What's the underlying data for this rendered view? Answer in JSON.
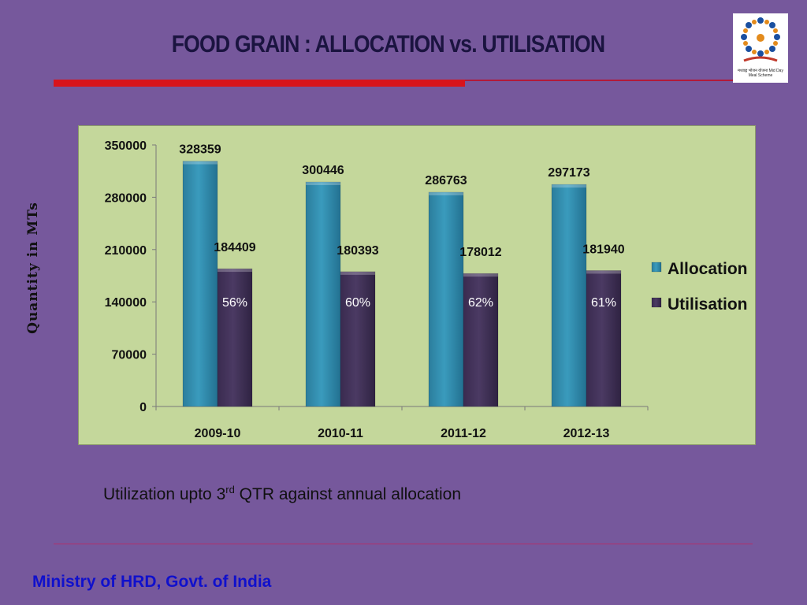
{
  "slide": {
    "title": "FOOD GRAIN : ALLOCATION vs. UTILISATION",
    "note_prefix": "Utilization upto 3",
    "note_sup": "rd",
    "note_suffix": " QTR against annual allocation",
    "footer": "Ministry of HRD, Govt. of India",
    "logo_caption": "मध्याह्न भोजन योजना Mid Day Meal Scheme"
  },
  "colors": {
    "allocation": "#3a9bbd",
    "utilisation": "#4b3a63",
    "plot_bg": "#c4d79b",
    "title_accent": "#d8141c",
    "footer_text": "#1010cc"
  },
  "chart_data": {
    "type": "bar",
    "title": "",
    "xlabel": "",
    "ylabel": "Quantity in MTs",
    "categories": [
      "2009-10",
      "2010-11",
      "2011-12",
      "2012-13"
    ],
    "series": [
      {
        "name": "Allocation",
        "values": [
          328359,
          300446,
          286763,
          297173
        ]
      },
      {
        "name": "Utilisation",
        "values": [
          184409,
          180393,
          178012,
          181940
        ]
      }
    ],
    "value_labels": {
      "Allocation": [
        "328359",
        "300446",
        "286763",
        "297173"
      ],
      "Utilisation": [
        "184409",
        "180393",
        "178012",
        "181940"
      ]
    },
    "percent_labels": [
      "56%",
      "60%",
      "62%",
      "61%"
    ],
    "yticks": [
      "0",
      "70000",
      "140000",
      "210000",
      "280000",
      "350000"
    ],
    "ylim": [
      0,
      350000
    ],
    "legend": "right",
    "grid": false
  }
}
